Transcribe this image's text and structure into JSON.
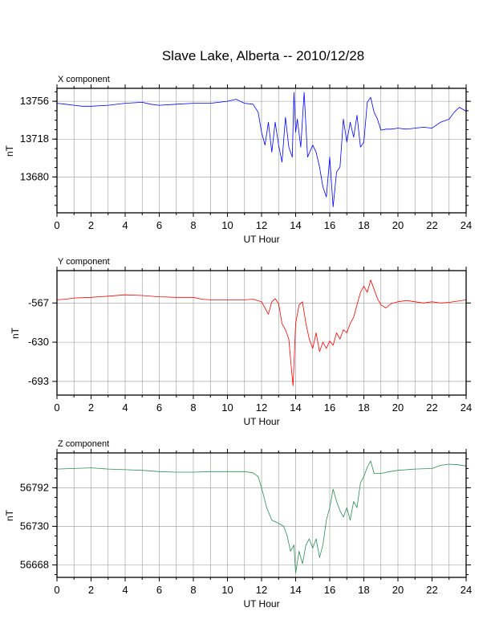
{
  "title": "Slave Lake, Alberta -- 2010/12/28",
  "x_axis": {
    "label": "UT Hour",
    "range": [
      0,
      24
    ],
    "ticks": [
      0,
      2,
      4,
      6,
      8,
      10,
      12,
      14,
      16,
      18,
      20,
      22,
      24
    ],
    "tick_labels": [
      "0",
      "2",
      "4",
      "6",
      "8",
      "10",
      "12",
      "14",
      "16",
      "18",
      "20",
      "22",
      "24"
    ]
  },
  "chart_data": [
    {
      "type": "line",
      "title": "X component",
      "xlabel": "UT Hour",
      "ylabel": "nT",
      "xlim": [
        0,
        24
      ],
      "ylim": [
        13644,
        13769
      ],
      "yticks": [
        13680,
        13718,
        13756
      ],
      "ytick_labels": [
        "13680",
        "13718",
        "13756"
      ],
      "grid": true,
      "color": "#0000ff",
      "series": [
        {
          "x": [
            0,
            0.5,
            1,
            1.5,
            2,
            3,
            4,
            5,
            5.5,
            6,
            7,
            8,
            9,
            10,
            10.5,
            11,
            11.5,
            11.8,
            12,
            12.2,
            12.4,
            12.6,
            12.8,
            13,
            13.2,
            13.4,
            13.6,
            13.8,
            13.9,
            14,
            14.1,
            14.3,
            14.5,
            14.7,
            15,
            15.2,
            15.4,
            15.6,
            15.8,
            16,
            16.2,
            16.4,
            16.6,
            16.8,
            17,
            17.2,
            17.4,
            17.6,
            17.8,
            18,
            18.2,
            18.4,
            18.6,
            18.8,
            19,
            19.3,
            19.6,
            20,
            20.5,
            21,
            21.5,
            22,
            22.5,
            23,
            23.3,
            23.6,
            24
          ],
          "y": [
            13754,
            13753,
            13752,
            13751,
            13751,
            13752,
            13754,
            13755,
            13753,
            13752,
            13753,
            13754,
            13754,
            13756,
            13758,
            13754,
            13753,
            13745,
            13725,
            13712,
            13735,
            13705,
            13735,
            13712,
            13695,
            13740,
            13710,
            13700,
            13765,
            13725,
            13738,
            13710,
            13765,
            13700,
            13712,
            13705,
            13690,
            13670,
            13660,
            13700,
            13650,
            13685,
            13690,
            13738,
            13715,
            13735,
            13720,
            13742,
            13710,
            13715,
            13755,
            13760,
            13745,
            13738,
            13727,
            13728,
            13728,
            13729,
            13728,
            13729,
            13730,
            13729,
            13735,
            13738,
            13745,
            13750,
            13746
          ]
        }
      ]
    },
    {
      "type": "line",
      "title": "Y component",
      "xlabel": "UT Hour",
      "ylabel": "nT",
      "xlim": [
        0,
        24
      ],
      "ylim": [
        -715,
        -515
      ],
      "yticks": [
        -567,
        -630,
        -693
      ],
      "ytick_labels": [
        "-567",
        "-630",
        "-693"
      ],
      "grid": true,
      "color": "#ff0000",
      "series": [
        {
          "x": [
            0,
            0.5,
            1,
            2,
            3,
            4,
            5,
            6,
            7,
            8,
            8.5,
            9,
            10,
            11,
            11.5,
            12,
            12.2,
            12.4,
            12.6,
            12.8,
            13,
            13.2,
            13.4,
            13.6,
            13.75,
            13.85,
            14,
            14.2,
            14.4,
            14.6,
            14.8,
            15,
            15.2,
            15.4,
            15.6,
            15.8,
            16,
            16.2,
            16.4,
            16.6,
            16.8,
            17,
            17.2,
            17.4,
            17.6,
            17.8,
            18,
            18.2,
            18.4,
            18.6,
            18.8,
            19,
            19.3,
            19.6,
            20,
            20.5,
            21,
            21.5,
            22,
            22.5,
            23,
            23.5,
            24
          ],
          "y": [
            -562,
            -561,
            -559,
            -558,
            -556,
            -554,
            -555,
            -557,
            -558,
            -558,
            -561,
            -562,
            -562,
            -562,
            -561,
            -565,
            -575,
            -585,
            -565,
            -560,
            -568,
            -600,
            -610,
            -625,
            -672,
            -700,
            -600,
            -570,
            -565,
            -600,
            -625,
            -640,
            -615,
            -645,
            -630,
            -640,
            -628,
            -635,
            -615,
            -625,
            -610,
            -615,
            -600,
            -590,
            -570,
            -550,
            -540,
            -550,
            -530,
            -545,
            -560,
            -570,
            -575,
            -568,
            -565,
            -563,
            -565,
            -567,
            -565,
            -567,
            -566,
            -564,
            -562
          ]
        }
      ]
    },
    {
      "type": "line",
      "title": "Z component",
      "xlabel": "UT Hour",
      "ylabel": "nT",
      "xlim": [
        0,
        24
      ],
      "ylim": [
        56648,
        56848
      ],
      "yticks": [
        56668,
        56730,
        56792
      ],
      "ytick_labels": [
        "56668",
        "56730",
        "56792"
      ],
      "grid": true,
      "color": "#2e8b57",
      "series": [
        {
          "x": [
            0,
            1,
            2,
            3,
            4,
            5,
            6,
            7,
            8,
            9,
            10,
            11,
            11.5,
            11.8,
            12,
            12.3,
            12.6,
            13,
            13.3,
            13.5,
            13.7,
            13.9,
            14,
            14.2,
            14.4,
            14.6,
            14.8,
            15,
            15.2,
            15.4,
            15.6,
            15.8,
            16,
            16.2,
            16.4,
            16.6,
            16.8,
            17,
            17.2,
            17.4,
            17.6,
            17.8,
            18,
            18.2,
            18.4,
            18.6,
            19,
            19.5,
            20,
            21,
            22,
            22.5,
            23,
            23.5,
            24
          ],
          "y": [
            56822,
            56823,
            56824,
            56822,
            56821,
            56820,
            56818,
            56817,
            56817,
            56818,
            56818,
            56818,
            56816,
            56810,
            56792,
            56760,
            56740,
            56735,
            56730,
            56715,
            56690,
            56700,
            56655,
            56690,
            56670,
            56700,
            56710,
            56695,
            56710,
            56680,
            56700,
            56740,
            56760,
            56790,
            56770,
            56755,
            56745,
            56760,
            56740,
            56770,
            56760,
            56800,
            56810,
            56825,
            56835,
            56815,
            56815,
            56818,
            56820,
            56822,
            56823,
            56828,
            56830,
            56829,
            56827
          ]
        }
      ]
    }
  ]
}
